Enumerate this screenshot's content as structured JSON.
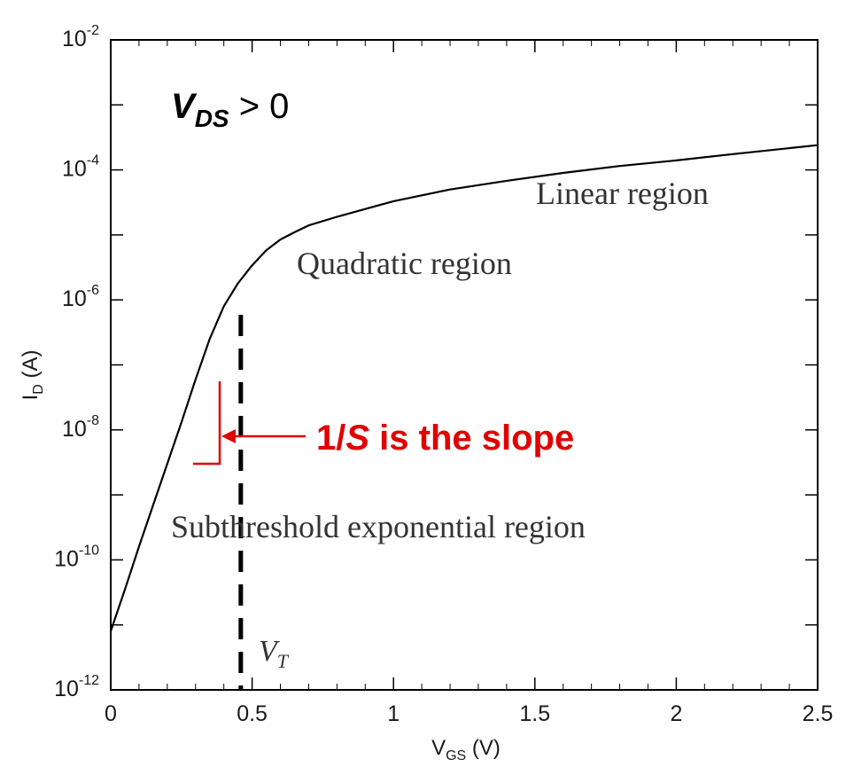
{
  "chart_data": {
    "type": "line",
    "yscale": "log",
    "xlabel": {
      "main": "V",
      "sub": "GS",
      "unit": " (V)"
    },
    "ylabel": {
      "main": "I",
      "sub": "D",
      "unit": " (A)"
    },
    "xlim": [
      0,
      2.5
    ],
    "ylim": [
      1e-12,
      0.01
    ],
    "x_ticks": [
      {
        "value": 0,
        "label": "0"
      },
      {
        "value": 0.5,
        "label": "0.5"
      },
      {
        "value": 1,
        "label": "1"
      },
      {
        "value": 1.5,
        "label": "1.5"
      },
      {
        "value": 2,
        "label": "2"
      },
      {
        "value": 2.5,
        "label": "2.5"
      }
    ],
    "y_ticks": [
      {
        "value": 1e-12,
        "base": "10",
        "exp": "-12"
      },
      {
        "value": 1e-10,
        "base": "10",
        "exp": "-10"
      },
      {
        "value": 1e-08,
        "base": "10",
        "exp": "-8"
      },
      {
        "value": 1e-06,
        "base": "10",
        "exp": "-6"
      },
      {
        "value": 0.0001,
        "base": "10",
        "exp": "-4"
      },
      {
        "value": 0.01,
        "base": "10",
        "exp": "-2"
      }
    ],
    "grid": false,
    "series": [
      {
        "color": "#000000",
        "points": [
          [
            0.0,
            8e-12
          ],
          [
            0.05,
            3.5e-11
          ],
          [
            0.1,
            1.6e-10
          ],
          [
            0.15,
            7e-10
          ],
          [
            0.2,
            3e-09
          ],
          [
            0.25,
            1.3e-08
          ],
          [
            0.3,
            6e-08
          ],
          [
            0.35,
            2.5e-07
          ],
          [
            0.4,
            8e-07
          ],
          [
            0.45,
            1.8e-06
          ],
          [
            0.5,
            3.4e-06
          ],
          [
            0.55,
            5.8e-06
          ],
          [
            0.6,
            8.5e-06
          ],
          [
            0.65,
            1.1e-05
          ],
          [
            0.7,
            1.4e-05
          ],
          [
            0.8,
            1.9e-05
          ],
          [
            0.9,
            2.5e-05
          ],
          [
            1.0,
            3.3e-05
          ],
          [
            1.2,
            5e-05
          ],
          [
            1.4,
            6.8e-05
          ],
          [
            1.6,
            9e-05
          ],
          [
            1.8,
            0.000115
          ],
          [
            2.0,
            0.00014
          ],
          [
            2.2,
            0.000175
          ],
          [
            2.5,
            0.00024
          ]
        ]
      }
    ],
    "annotations": {
      "vds": {
        "main": "V",
        "sub": "DS",
        "rest": " > 0"
      },
      "regions": [
        "Linear region",
        "Quadratic region",
        "Subthreshold exponential region"
      ],
      "slope_note": {
        "prefix": "1/",
        "italic": "S",
        "suffix": " is the slope",
        "color": "#e00000"
      },
      "vt_marker": {
        "x": 0.46,
        "label_main": "V",
        "label_sub": "T"
      }
    }
  }
}
